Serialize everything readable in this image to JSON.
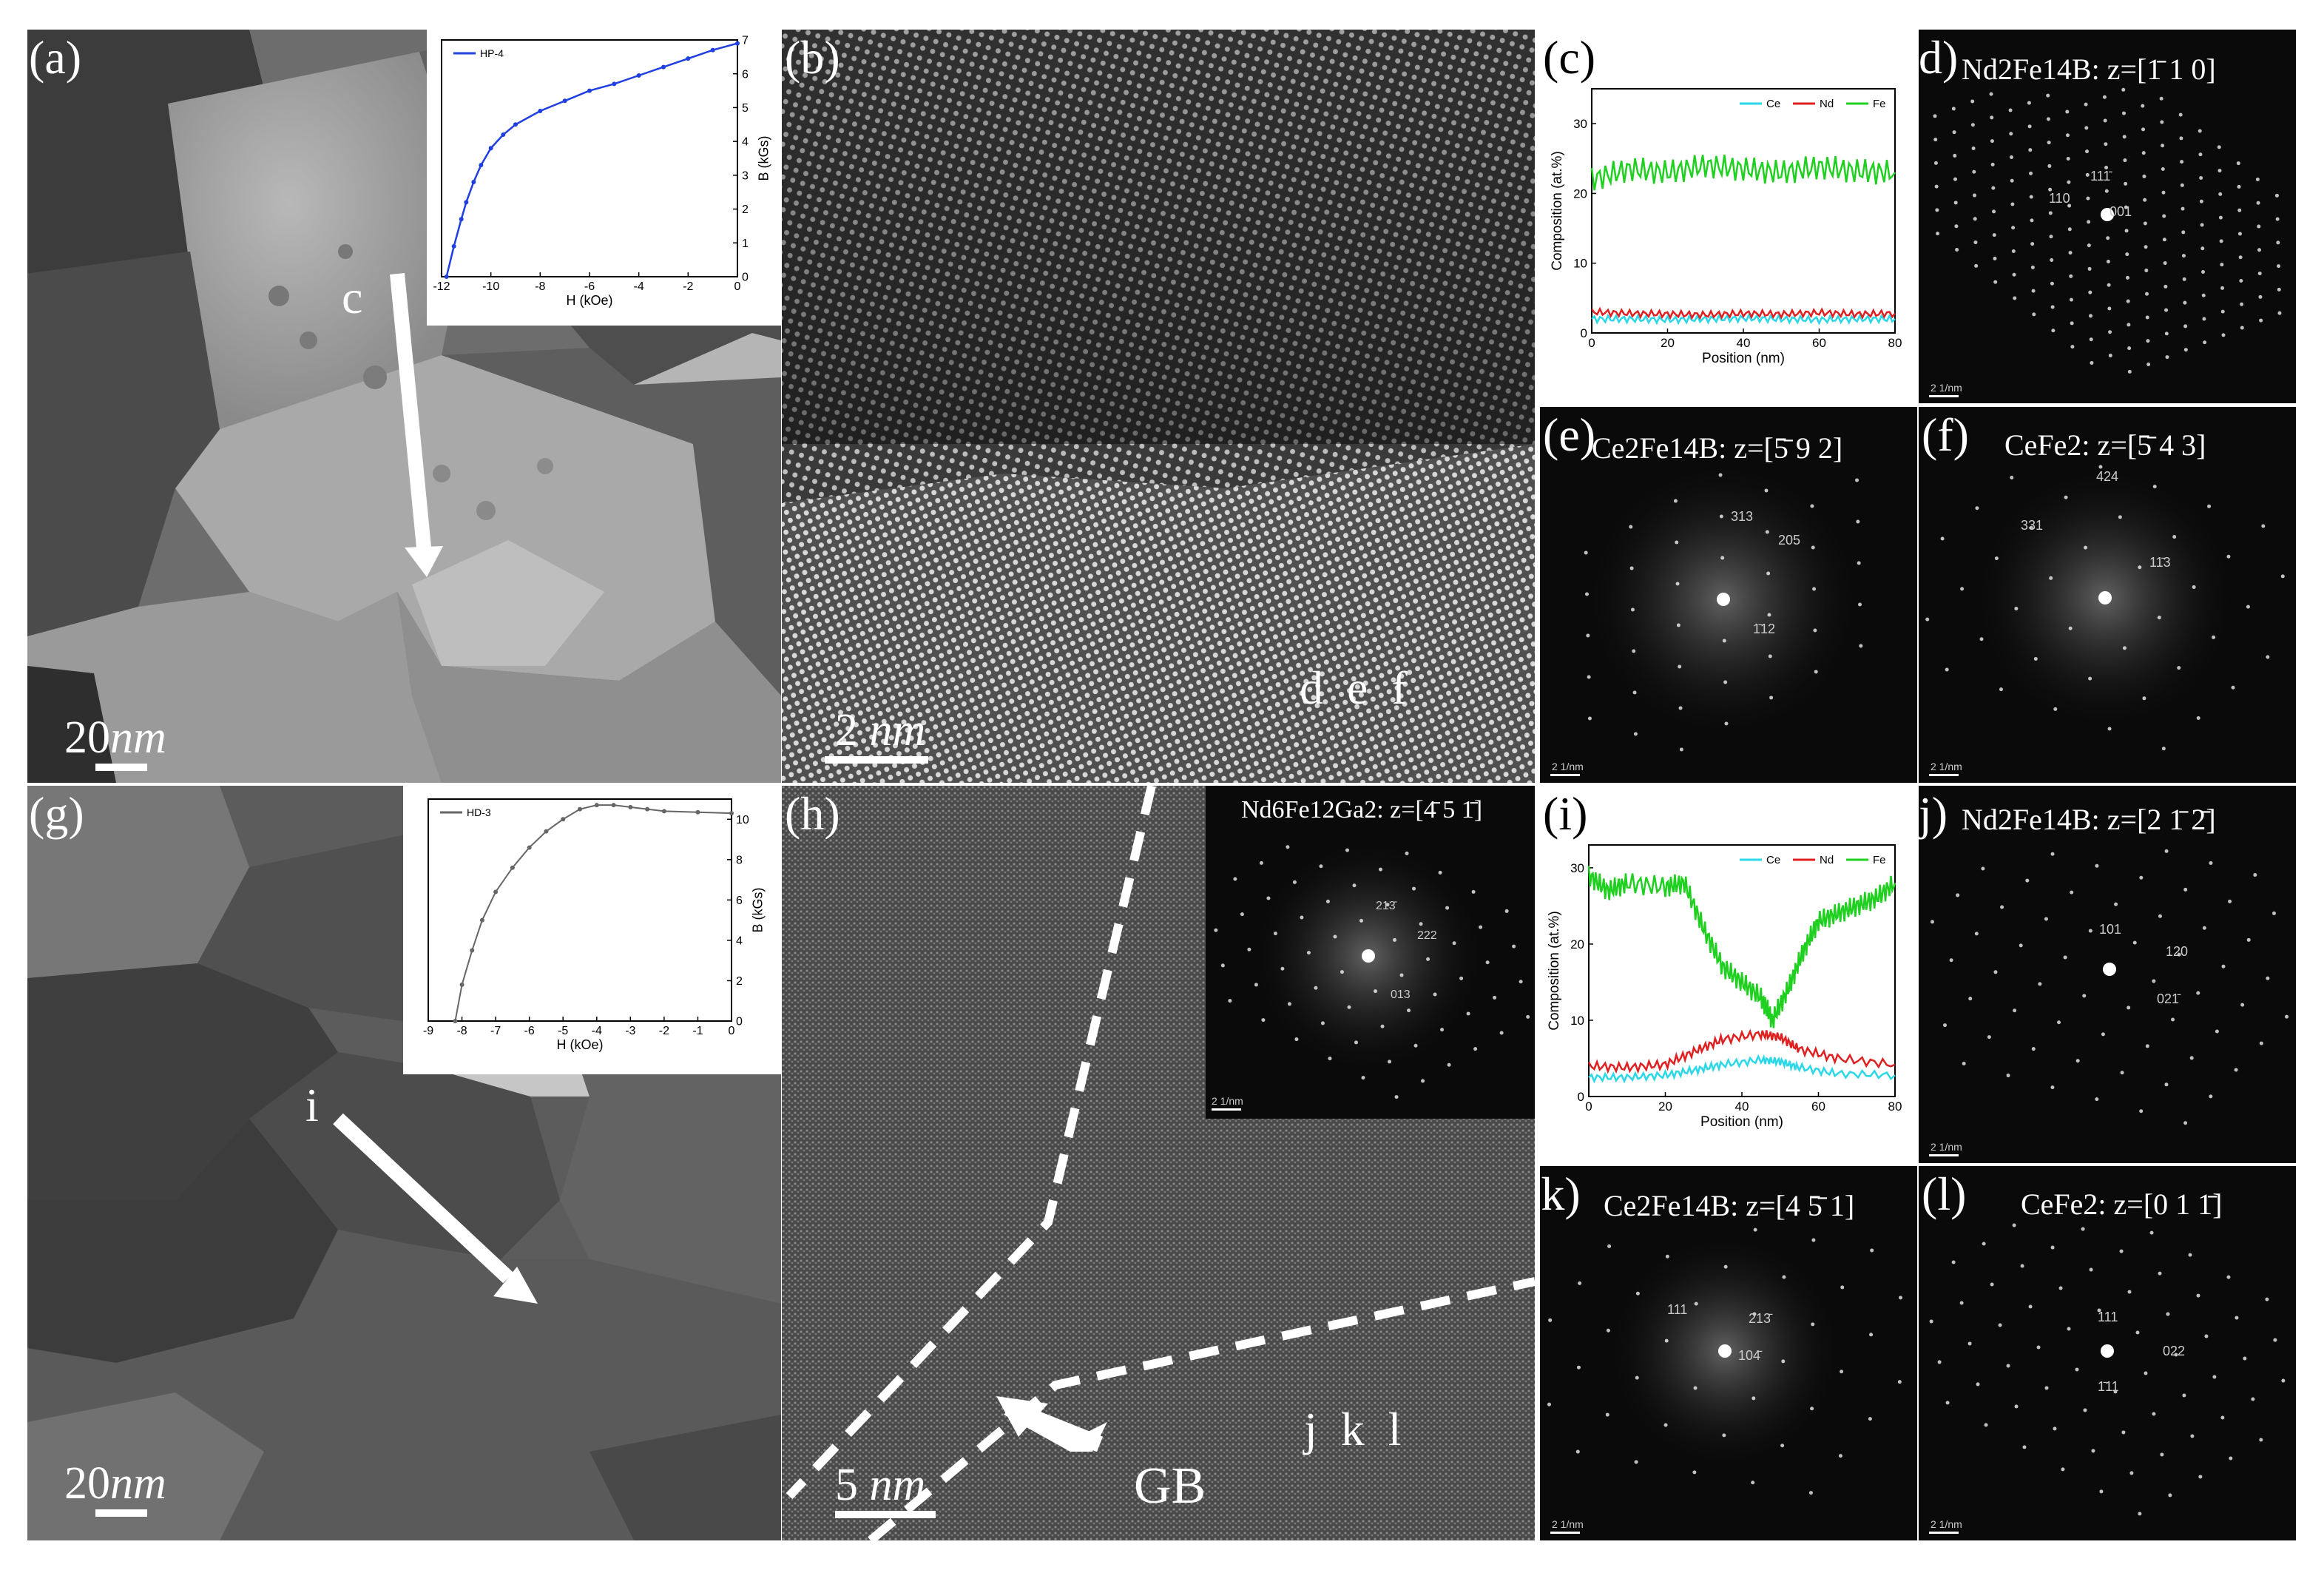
{
  "panels": {
    "a": {
      "label": "(a)",
      "arrow_label": "c",
      "scale_value": "20",
      "scale_unit": "nm"
    },
    "b": {
      "label": "(b)",
      "scale_value": "2",
      "scale_unit": "nm",
      "marker": "d  e  f"
    },
    "c": {
      "label": "(c)"
    },
    "d": {
      "label": "d)",
      "title": "Nd2Fe14B: ",
      "zaxis": "z=[1̄ 1 0]",
      "spots": [
        "111̄",
        "110",
        "001"
      ],
      "scale": "2 1/nm"
    },
    "e": {
      "label": "(e)",
      "title": "Ce2Fe14B: ",
      "zaxis": "z=[5̄ 9 2]",
      "spots": [
        "313",
        "205",
        "1̄12"
      ],
      "scale": "2 1/nm"
    },
    "f": {
      "label": "(f)",
      "title": "CeFe2: ",
      "zaxis": "z=[5̄ 4 3]",
      "spots": [
        "424",
        "331",
        "11̄3"
      ],
      "scale": "2 1/nm"
    },
    "g": {
      "label": "(g)",
      "arrow_label": "i",
      "scale_value": "20",
      "scale_unit": "nm"
    },
    "h": {
      "label": "(h)",
      "scale_value": "5",
      "scale_unit": "nm",
      "gb": "GB",
      "marker": "j  k  l",
      "inset_title": "Nd6Fe12Ga2: ",
      "inset_zaxis": "z=[4̄ 5 1̄]",
      "inset_spots": [
        "213̄",
        "222",
        "013"
      ],
      "inset_scale": "2 1/nm"
    },
    "i": {
      "label": "(i)"
    },
    "j": {
      "label": "j)",
      "title": "Nd2Fe14B: ",
      "zaxis": "z=[2 1̄ 2̄]",
      "spots": [
        "101",
        "120",
        "021̄"
      ],
      "scale": "2 1/nm"
    },
    "k": {
      "label": "(k)",
      "title": "Ce2Fe14B: ",
      "zaxis": "z=[4 5̄ 1]",
      "spots": [
        "111",
        "213̄",
        "104̄"
      ],
      "scale": "2 1/nm"
    },
    "l": {
      "label": "(l)",
      "title": "CeFe2: ",
      "zaxis": "z=[0 1 1̄]",
      "spots": [
        "111",
        "022",
        "1̄11"
      ],
      "scale": "2 1/nm"
    }
  },
  "chart_data": [
    {
      "id": "inset-a",
      "type": "line",
      "legend": [
        "HP-4"
      ],
      "xlabel": "H (kOe)",
      "ylabel": "B (kGs)",
      "xlim": [
        -12,
        0
      ],
      "ylim": [
        0,
        7
      ],
      "xticks": [
        "-12",
        "-10",
        "-8",
        "-6",
        "-4",
        "-2",
        "0"
      ],
      "yticks": [
        "0",
        "1",
        "2",
        "3",
        "4",
        "5",
        "6",
        "7"
      ],
      "color": "#1f3fe0",
      "series": [
        {
          "name": "HP-4",
          "x": [
            -11.8,
            -11.5,
            -11.2,
            -11.0,
            -10.7,
            -10.4,
            -10.0,
            -9.5,
            -9.0,
            -8.0,
            -7.0,
            -6.0,
            -5.0,
            -4.0,
            -3.0,
            -2.0,
            -1.0,
            0.0
          ],
          "y": [
            0,
            0.9,
            1.7,
            2.2,
            2.8,
            3.3,
            3.8,
            4.2,
            4.5,
            4.9,
            5.2,
            5.5,
            5.7,
            5.95,
            6.2,
            6.45,
            6.7,
            6.9
          ]
        }
      ]
    },
    {
      "id": "chart-c",
      "type": "line",
      "legend": [
        "Ce",
        "Nd",
        "Fe"
      ],
      "xlabel": "Position (nm)",
      "ylabel": "Composition (at.%)",
      "xlim": [
        0,
        80
      ],
      "ylim": [
        0,
        35
      ],
      "xticks": [
        "0",
        "20",
        "40",
        "60",
        "80"
      ],
      "yticks": [
        "0",
        "10",
        "20",
        "30"
      ],
      "series": [
        {
          "name": "Ce",
          "color": "#2ad8e8",
          "x": [
            0,
            10,
            20,
            30,
            40,
            50,
            60,
            70,
            80
          ],
          "y": [
            2,
            2,
            1.9,
            2,
            2.1,
            2,
            1.9,
            2,
            2
          ]
        },
        {
          "name": "Nd",
          "color": "#e02020",
          "x": [
            0,
            10,
            20,
            30,
            40,
            50,
            60,
            70,
            80
          ],
          "y": [
            3,
            2.8,
            2.7,
            2.6,
            2.8,
            2.7,
            2.9,
            2.7,
            2.8
          ]
        },
        {
          "name": "Fe",
          "color": "#20d020",
          "x": [
            0,
            10,
            20,
            30,
            40,
            50,
            60,
            70,
            80
          ],
          "y": [
            22,
            23.5,
            23,
            24,
            23.5,
            23,
            23.8,
            23.2,
            23
          ]
        }
      ]
    },
    {
      "id": "inset-g",
      "type": "line",
      "legend": [
        "HD-3"
      ],
      "xlabel": "H (kOe)",
      "ylabel": "B (kGs)",
      "xlim": [
        -9,
        0
      ],
      "ylim": [
        0,
        11
      ],
      "xticks": [
        "-9",
        "-8",
        "-7",
        "-6",
        "-5",
        "-4",
        "-3",
        "-2",
        "-1",
        "0"
      ],
      "yticks": [
        "0",
        "2",
        "4",
        "6",
        "8",
        "10"
      ],
      "color": "#666666",
      "series": [
        {
          "name": "HD-3",
          "x": [
            -8.2,
            -8.0,
            -7.7,
            -7.4,
            -7.0,
            -6.5,
            -6.0,
            -5.5,
            -5.0,
            -4.5,
            -4.0,
            -3.5,
            -3.0,
            -2.5,
            -2.0,
            -1.0,
            0.0
          ],
          "y": [
            0,
            1.8,
            3.5,
            5.0,
            6.4,
            7.6,
            8.6,
            9.4,
            10.0,
            10.5,
            10.7,
            10.7,
            10.6,
            10.5,
            10.4,
            10.35,
            10.3
          ]
        }
      ]
    },
    {
      "id": "chart-i",
      "type": "line",
      "legend": [
        "Ce",
        "Nd",
        "Fe"
      ],
      "xlabel": "Position (nm)",
      "ylabel": "Composition (at.%)",
      "xlim": [
        0,
        80
      ],
      "ylim": [
        0,
        33
      ],
      "xticks": [
        "0",
        "20",
        "40",
        "60",
        "80"
      ],
      "yticks": [
        "0",
        "10",
        "20",
        "30"
      ],
      "series": [
        {
          "name": "Ce",
          "color": "#2ad8e8",
          "x": [
            0,
            10,
            20,
            28,
            35,
            45,
            50,
            55,
            65,
            80
          ],
          "y": [
            2.5,
            2.5,
            2.8,
            3.5,
            4.2,
            4.8,
            4.6,
            3.8,
            3.0,
            2.8
          ]
        },
        {
          "name": "Nd",
          "color": "#e02020",
          "x": [
            0,
            10,
            20,
            28,
            35,
            45,
            50,
            55,
            65,
            80
          ],
          "y": [
            4,
            3.8,
            4.2,
            6.0,
            7.5,
            8.2,
            7.8,
            6.2,
            5.0,
            4.2
          ]
        },
        {
          "name": "Fe",
          "color": "#20d020",
          "x": [
            0,
            5,
            10,
            20,
            25,
            30,
            35,
            40,
            45,
            48,
            52,
            56,
            60,
            65,
            70,
            75,
            80
          ],
          "y": [
            29,
            27,
            28,
            27.5,
            28,
            22,
            17,
            15,
            13,
            10,
            14,
            19,
            23,
            24,
            25,
            26,
            28
          ]
        }
      ]
    }
  ]
}
